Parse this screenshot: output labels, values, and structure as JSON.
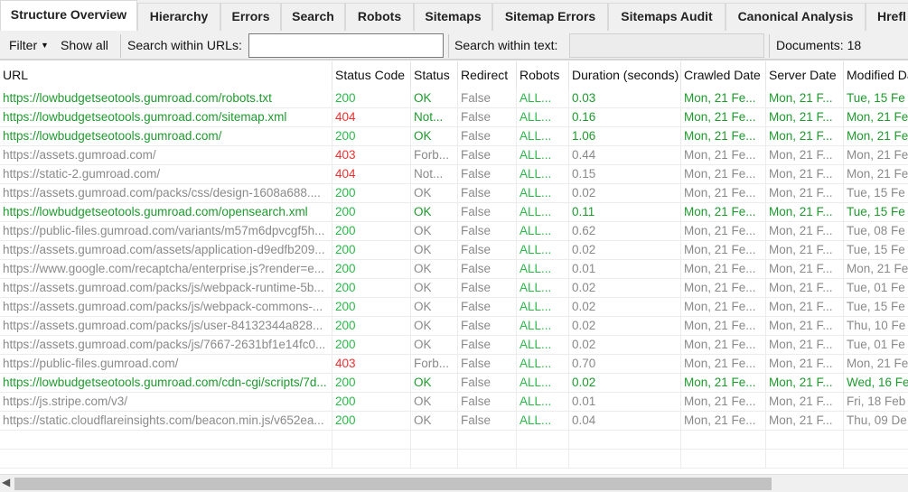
{
  "tabs": [
    "Structure Overview",
    "Hierarchy",
    "Errors",
    "Search",
    "Robots",
    "Sitemaps",
    "Sitemap Errors",
    "Sitemaps Audit",
    "Canonical Analysis",
    "Hrefl"
  ],
  "toolbar": {
    "filter": "Filter",
    "show_all": "Show all",
    "search_urls_label": "Search within URLs:",
    "search_urls_value": "",
    "search_text_label": "Search within text:",
    "documents": "Documents: 18"
  },
  "columns": [
    "URL",
    "Status Code",
    "Status",
    "Redirect",
    "Robots",
    "Duration (seconds)",
    "Crawled Date",
    "Server Date",
    "Modified Da"
  ],
  "colors": {
    "ok": "#1e9a2e",
    "other": "#8a8a8a",
    "error_code": "#f03030"
  },
  "rows": [
    [
      "https://lowbudgetseotools.gumroad.com/robots.txt",
      "200",
      "OK",
      "False",
      "ALL...",
      "0.03",
      "Mon, 21 Fe...",
      "Mon, 21 F...",
      "Tue, 15 Fe",
      "green"
    ],
    [
      "https://lowbudgetseotools.gumroad.com/sitemap.xml",
      "404",
      "Not...",
      "False",
      "ALL...",
      "0.16",
      "Mon, 21 Fe...",
      "Mon, 21 F...",
      "Mon, 21 Fe",
      "green"
    ],
    [
      "https://lowbudgetseotools.gumroad.com/",
      "200",
      "OK",
      "False",
      "ALL...",
      "1.06",
      "Mon, 21 Fe...",
      "Mon, 21 F...",
      "Mon, 21 Fe",
      "green"
    ],
    [
      "https://assets.gumroad.com/",
      "403",
      "Forb...",
      "False",
      "ALL...",
      "0.44",
      "Mon, 21 Fe...",
      "Mon, 21 F...",
      "Mon, 21 Fe",
      "gray"
    ],
    [
      "https://static-2.gumroad.com/",
      "404",
      "Not...",
      "False",
      "ALL...",
      "0.15",
      "Mon, 21 Fe...",
      "Mon, 21 F...",
      "Mon, 21 Fe",
      "gray"
    ],
    [
      "https://assets.gumroad.com/packs/css/design-1608a688....",
      "200",
      "OK",
      "False",
      "ALL...",
      "0.02",
      "Mon, 21 Fe...",
      "Mon, 21 F...",
      "Tue, 15 Fe",
      "gray"
    ],
    [
      "https://lowbudgetseotools.gumroad.com/opensearch.xml",
      "200",
      "OK",
      "False",
      "ALL...",
      "0.11",
      "Mon, 21 Fe...",
      "Mon, 21 F...",
      "Tue, 15 Fe",
      "green"
    ],
    [
      "https://public-files.gumroad.com/variants/m57m6dpvcgf5h...",
      "200",
      "OK",
      "False",
      "ALL...",
      "0.62",
      "Mon, 21 Fe...",
      "Mon, 21 F...",
      "Tue, 08 Fe",
      "gray"
    ],
    [
      "https://assets.gumroad.com/assets/application-d9edfb209...",
      "200",
      "OK",
      "False",
      "ALL...",
      "0.02",
      "Mon, 21 Fe...",
      "Mon, 21 F...",
      "Tue, 15 Fe",
      "gray"
    ],
    [
      "https://www.google.com/recaptcha/enterprise.js?render=e...",
      "200",
      "OK",
      "False",
      "ALL...",
      "0.01",
      "Mon, 21 Fe...",
      "Mon, 21 F...",
      "Mon, 21 Fe",
      "gray"
    ],
    [
      "https://assets.gumroad.com/packs/js/webpack-runtime-5b...",
      "200",
      "OK",
      "False",
      "ALL...",
      "0.02",
      "Mon, 21 Fe...",
      "Mon, 21 F...",
      "Tue, 01 Fe",
      "gray"
    ],
    [
      "https://assets.gumroad.com/packs/js/webpack-commons-...",
      "200",
      "OK",
      "False",
      "ALL...",
      "0.02",
      "Mon, 21 Fe...",
      "Mon, 21 F...",
      "Tue, 15 Fe",
      "gray"
    ],
    [
      "https://assets.gumroad.com/packs/js/user-84132344a828...",
      "200",
      "OK",
      "False",
      "ALL...",
      "0.02",
      "Mon, 21 Fe...",
      "Mon, 21 F...",
      "Thu, 10 Fe",
      "gray"
    ],
    [
      "https://assets.gumroad.com/packs/js/7667-2631bf1e14fc0...",
      "200",
      "OK",
      "False",
      "ALL...",
      "0.02",
      "Mon, 21 Fe...",
      "Mon, 21 F...",
      "Tue, 01 Fe",
      "gray"
    ],
    [
      "https://public-files.gumroad.com/",
      "403",
      "Forb...",
      "False",
      "ALL...",
      "0.70",
      "Mon, 21 Fe...",
      "Mon, 21 F...",
      "Mon, 21 Fe",
      "gray"
    ],
    [
      "https://lowbudgetseotools.gumroad.com/cdn-cgi/scripts/7d...",
      "200",
      "OK",
      "False",
      "ALL...",
      "0.02",
      "Mon, 21 Fe...",
      "Mon, 21 F...",
      "Wed, 16 Fe",
      "green"
    ],
    [
      "https://js.stripe.com/v3/",
      "200",
      "OK",
      "False",
      "ALL...",
      "0.01",
      "Mon, 21 Fe...",
      "Mon, 21 F...",
      "Fri, 18 Feb",
      "gray"
    ],
    [
      "https://static.cloudflareinsights.com/beacon.min.js/v652ea...",
      "200",
      "OK",
      "False",
      "ALL...",
      "0.04",
      "Mon, 21 Fe...",
      "Mon, 21 F...",
      "Thu, 09 De",
      "gray"
    ]
  ]
}
